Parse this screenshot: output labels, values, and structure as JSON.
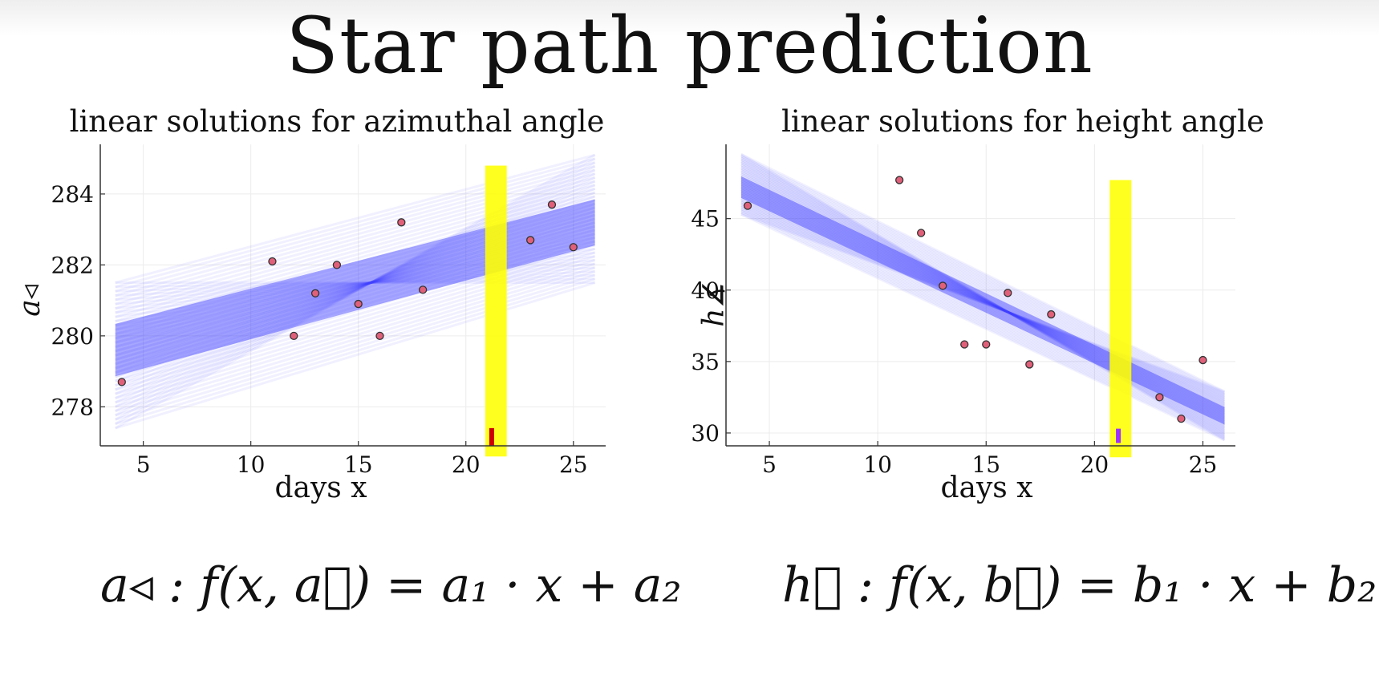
{
  "slide": {
    "title": "Star path prediction"
  },
  "formulas": {
    "azimuth": "a◃ : f(x, a⃗) = a₁ · x + a₂",
    "height": "h∡ : f(x, b⃗) = b₁ · x + b₂"
  },
  "colors": {
    "band": "#3b3bff",
    "highlight": "#ffff00",
    "point_fill": "#e0607a",
    "point_stroke": "#333333",
    "marker_az": "#cc0000",
    "marker_ht": "#9b30ff"
  },
  "chart_data": [
    {
      "type": "scatter",
      "title": "linear solutions for azimuthal angle",
      "xlabel": "days x",
      "ylabel": "a◃",
      "xlim": [
        3,
        26.5
      ],
      "ylim": [
        276.9,
        285.4
      ],
      "xticks": [
        5,
        10,
        15,
        20,
        25
      ],
      "yticks": [
        278,
        280,
        282,
        284
      ],
      "grid": true,
      "points": [
        {
          "x": 4,
          "y": 278.7
        },
        {
          "x": 11,
          "y": 282.1
        },
        {
          "x": 12,
          "y": 280.0
        },
        {
          "x": 13,
          "y": 281.2
        },
        {
          "x": 14,
          "y": 282.0
        },
        {
          "x": 15,
          "y": 280.9
        },
        {
          "x": 16,
          "y": 280.0
        },
        {
          "x": 17,
          "y": 283.2
        },
        {
          "x": 18,
          "y": 281.3
        },
        {
          "x": 23,
          "y": 282.7
        },
        {
          "x": 24,
          "y": 283.7
        },
        {
          "x": 25,
          "y": 282.5
        }
      ],
      "band": {
        "x_start": 3.7,
        "x_end": 26,
        "upper": [
          281.5,
          285.1
        ],
        "lower": [
          277.4,
          281.5
        ],
        "center": [
          279.6,
          283.2
        ]
      },
      "highlight_x": [
        20.9,
        21.9
      ],
      "highlight_y": [
        276.6,
        284.8
      ],
      "marker": {
        "x": 21.2,
        "y_range": [
          276.9,
          277.4
        ]
      }
    },
    {
      "type": "scatter",
      "title": "linear solutions for height angle",
      "xlabel": "days x",
      "ylabel": "h∡",
      "xlim": [
        3,
        26.5
      ],
      "ylim": [
        29.1,
        50.2
      ],
      "xticks": [
        5,
        10,
        15,
        20,
        25
      ],
      "yticks": [
        30,
        35,
        40,
        45
      ],
      "grid": true,
      "points": [
        {
          "x": 4,
          "y": 45.9
        },
        {
          "x": 11,
          "y": 47.7
        },
        {
          "x": 12,
          "y": 44.0
        },
        {
          "x": 13,
          "y": 40.3
        },
        {
          "x": 14,
          "y": 36.2
        },
        {
          "x": 15,
          "y": 36.2
        },
        {
          "x": 16,
          "y": 39.8
        },
        {
          "x": 17,
          "y": 34.8
        },
        {
          "x": 18,
          "y": 38.3
        },
        {
          "x": 23,
          "y": 32.5
        },
        {
          "x": 24,
          "y": 31.0
        },
        {
          "x": 25,
          "y": 35.1
        }
      ],
      "band": {
        "x_start": 3.7,
        "x_end": 26,
        "upper": [
          49.5,
          32.9
        ],
        "lower": [
          45.3,
          29.5
        ],
        "center": [
          47.2,
          31.2
        ]
      },
      "highlight_x": [
        20.7,
        21.7
      ],
      "highlight_y": [
        28.3,
        47.7
      ],
      "marker": {
        "x": 21.1,
        "y_range": [
          29.3,
          30.3
        ]
      }
    }
  ]
}
